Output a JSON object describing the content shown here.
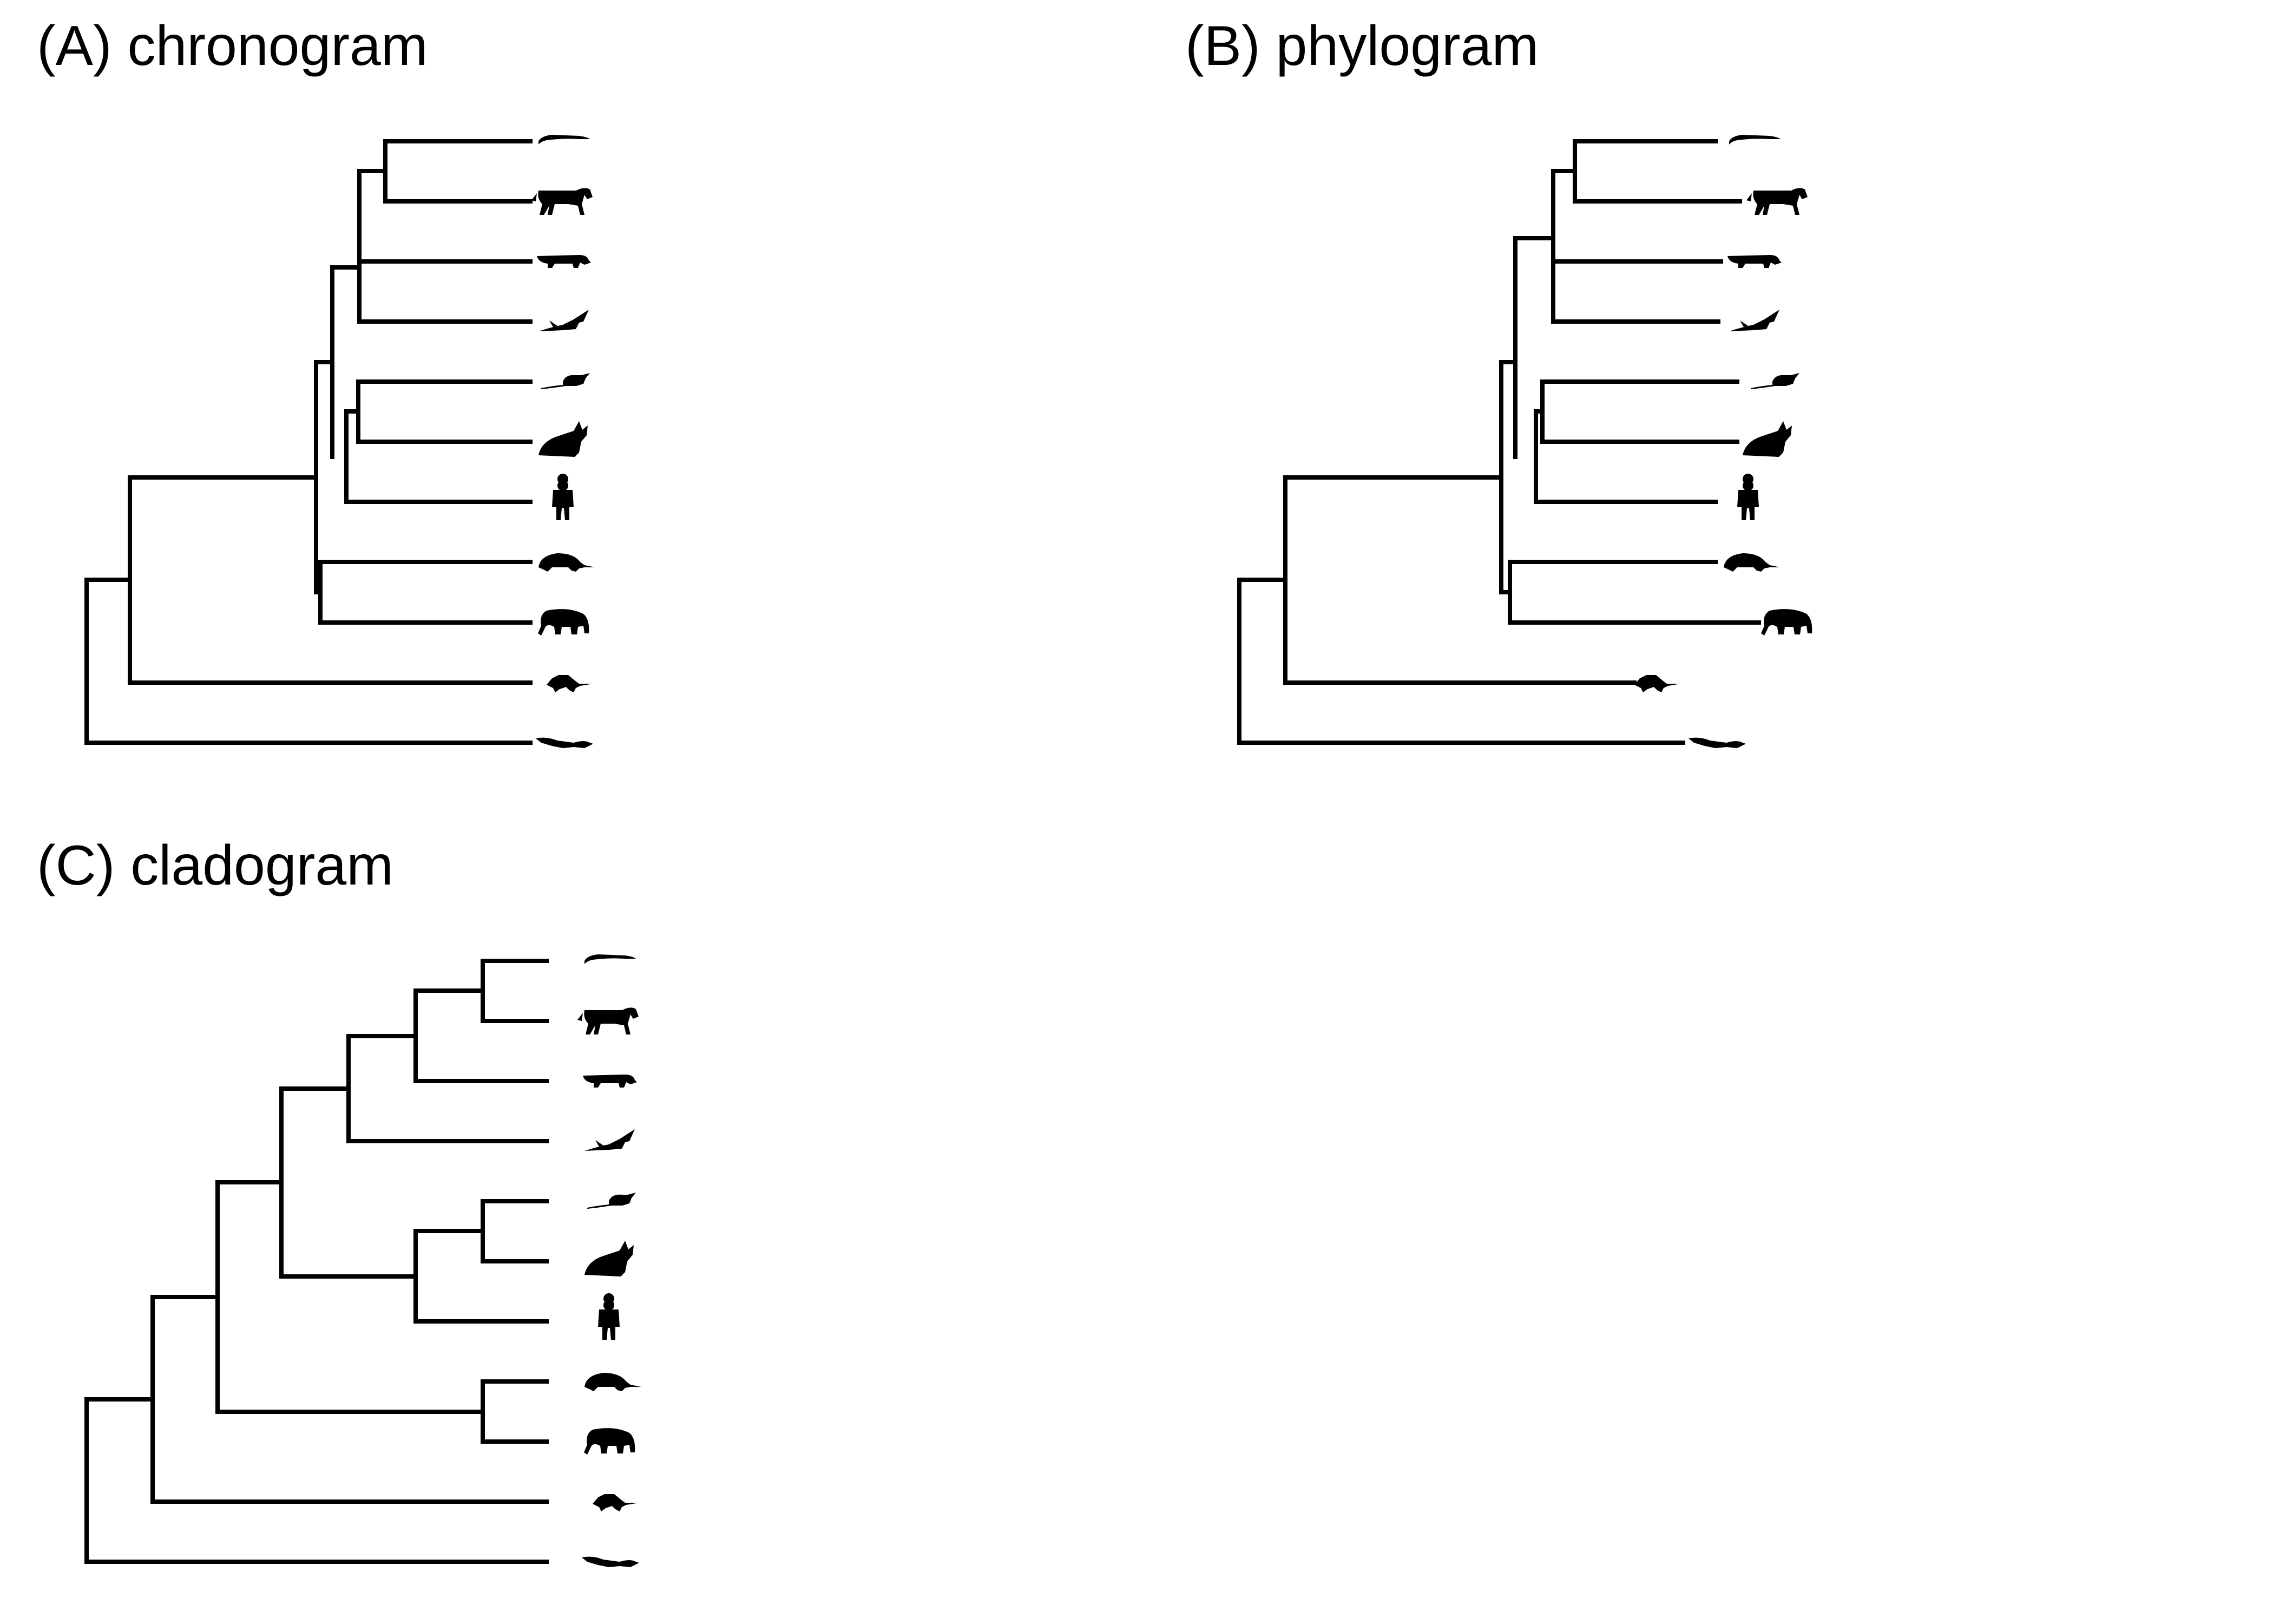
{
  "figure": {
    "panels": [
      {
        "id": "chronogram",
        "title": "(A) chronogram",
        "tips": [
          "platypus-like-icon",
          "horse-icon",
          "cat-icon",
          "bat-icon",
          "mouse-icon",
          "rabbit-icon",
          "human-icon",
          "armadillo-icon",
          "elephant-icon",
          "opossum-icon",
          "platypus-icon"
        ]
      },
      {
        "id": "phylogram",
        "title": "(B) phylogram",
        "tips": [
          "platypus-like-icon",
          "horse-icon",
          "cat-icon",
          "bat-icon",
          "mouse-icon",
          "rabbit-icon",
          "human-icon",
          "armadillo-icon",
          "elephant-icon",
          "opossum-icon",
          "platypus-icon"
        ]
      },
      {
        "id": "cladogram",
        "title": "(C) cladogram",
        "tips": [
          "platypus-like-icon",
          "horse-icon",
          "cat-icon",
          "bat-icon",
          "mouse-icon",
          "rabbit-icon",
          "human-icon",
          "armadillo-icon",
          "elephant-icon",
          "opossum-icon",
          "platypus-icon"
        ]
      }
    ]
  }
}
